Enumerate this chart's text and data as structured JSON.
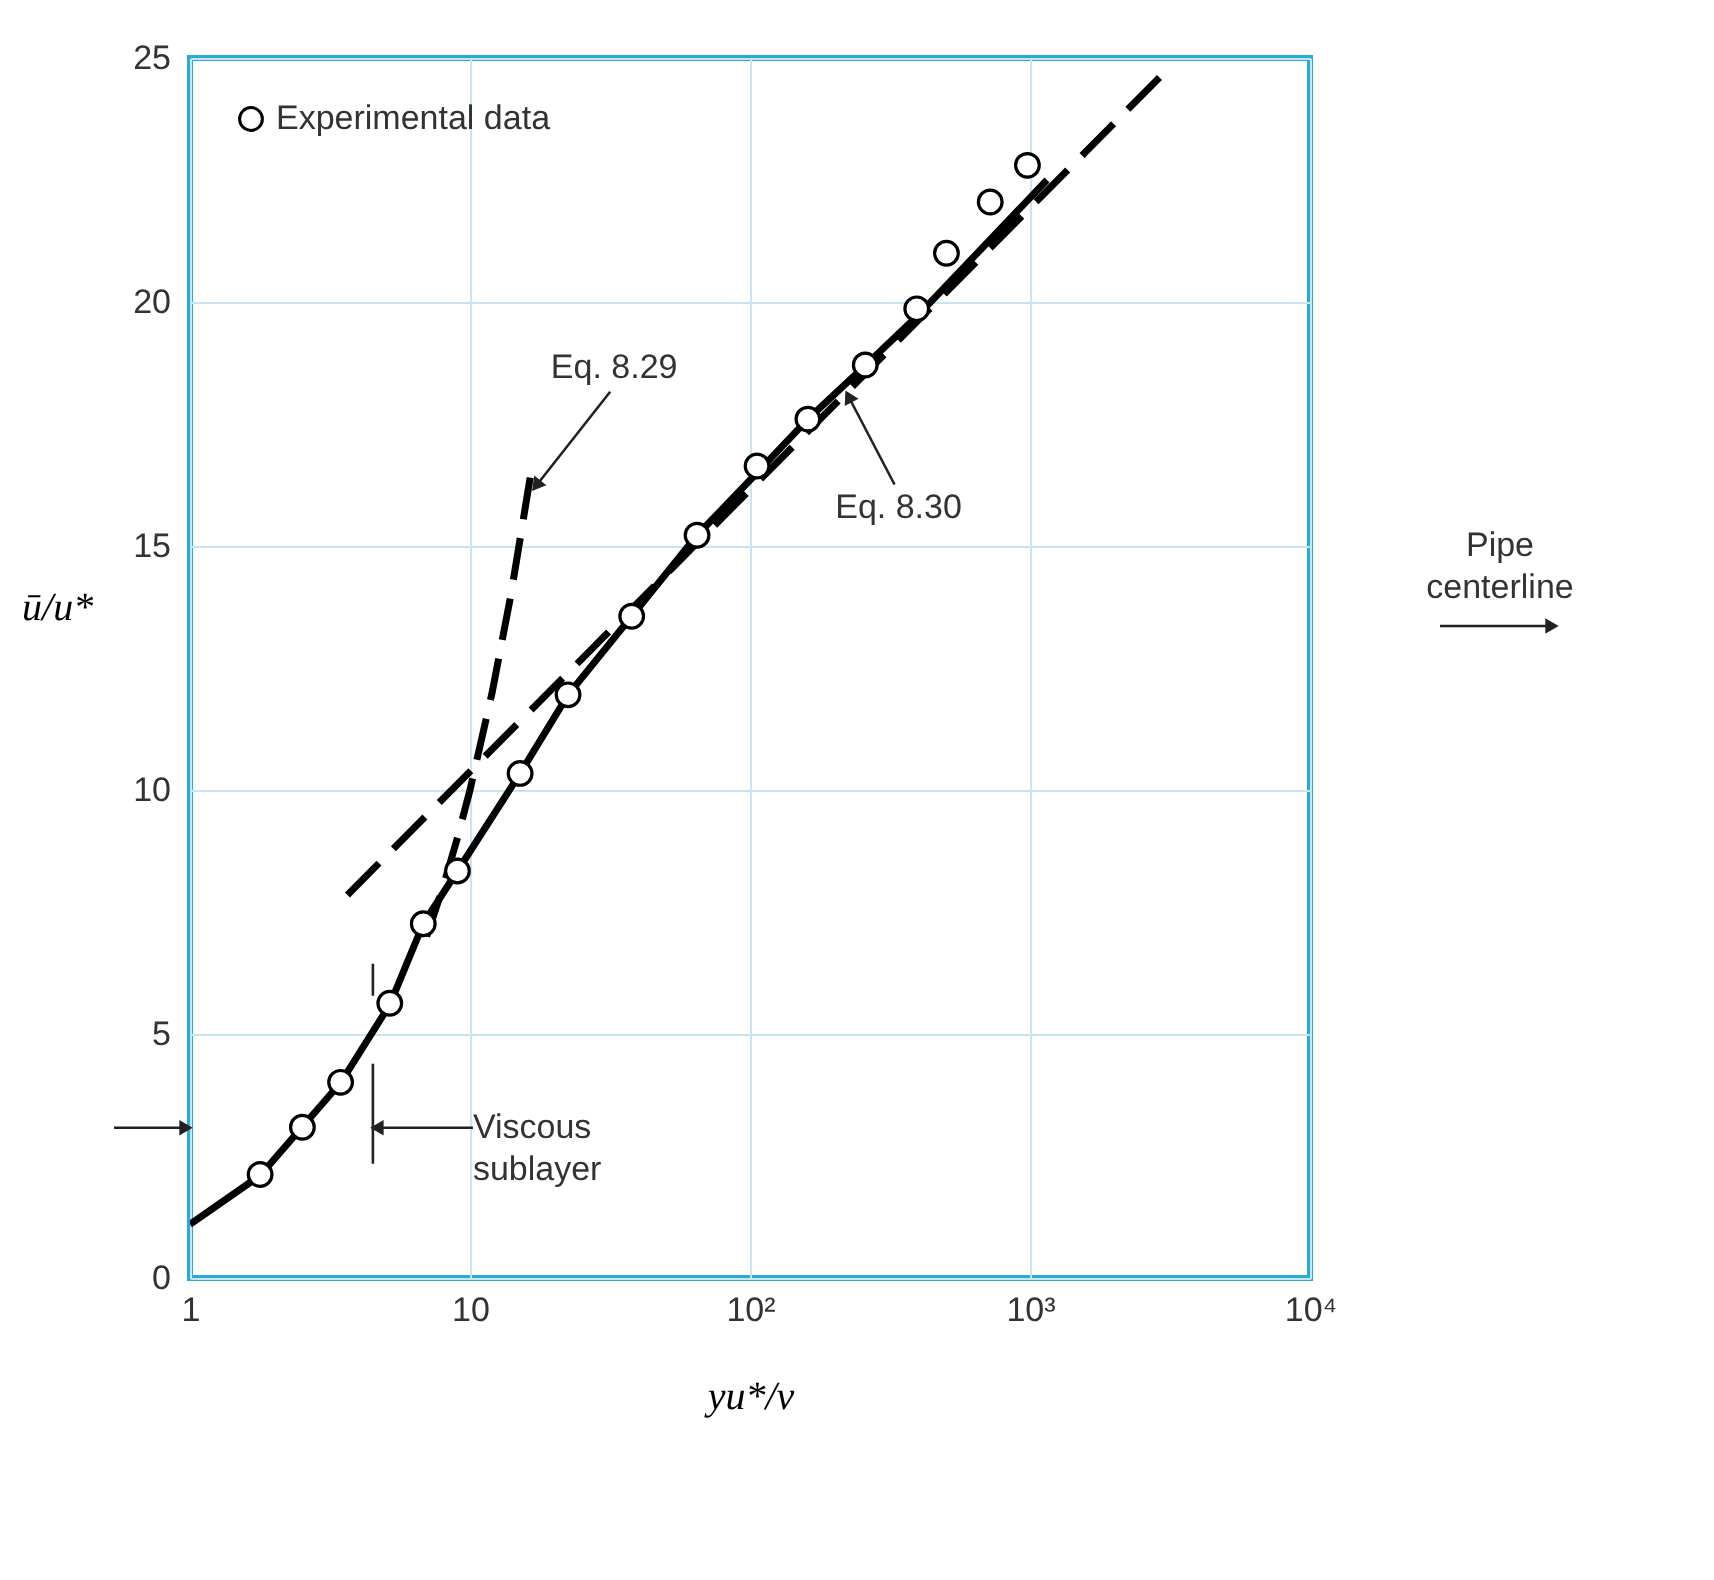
{
  "chart_data": {
    "type": "line",
    "xlabel": "yu*/ν",
    "ylabel": "ū/u*",
    "xlim": [
      1,
      10000
    ],
    "ylim": [
      0,
      25
    ],
    "log": "x",
    "xticks": [
      1,
      10,
      {
        "value": 100,
        "label": "10²"
      },
      {
        "value": 1000,
        "label": "10³"
      },
      {
        "value": 10000,
        "label": "10⁴"
      }
    ],
    "yticks": [
      0,
      5,
      10,
      15,
      20,
      25
    ],
    "grid": true,
    "legend": "top left",
    "series": [
      {
        "type": "line",
        "color": "#000000",
        "line_style": "solid",
        "marker": "none",
        "x": [
          1,
          1.78,
          2.52,
          3.45,
          5.17,
          6.81,
          9.02,
          15.1,
          22.4,
          37.8,
          64.7,
          106,
          161,
          258,
          394,
          1150
        ],
        "values": [
          1.1,
          2.1,
          3.1,
          4.0,
          5.6,
          7.26,
          8.34,
          10.34,
          11.95,
          13.56,
          15.22,
          16.5,
          17.6,
          18.7,
          19.7,
          22.5
        ]
      },
      {
        "type": "line",
        "color": "#000000",
        "line_style": "dashed",
        "marker": "none",
        "x": [
          3.65,
          2900
        ],
        "values": [
          7.85,
          24.6
        ]
      },
      {
        "type": "line",
        "color": "#000000",
        "line_style": "dashed",
        "marker": "none",
        "x": [
          7,
          8,
          9,
          10,
          12,
          14,
          16.4
        ],
        "values": [
          7,
          8,
          9,
          10,
          12,
          14,
          16.4
        ]
      },
      {
        "type": "scatter",
        "name": "Experimental data",
        "color": "#000000",
        "marker": "circle",
        "x": [
          1.78,
          2.52,
          3.45,
          5.17,
          6.81,
          9.02,
          15.1,
          22.4,
          37.8,
          64.7,
          106,
          161,
          258,
          394,
          503,
          721,
          979
        ],
        "values": [
          2.12,
          3.09,
          4.01,
          5.63,
          7.26,
          8.34,
          10.34,
          11.95,
          13.56,
          15.22,
          16.64,
          17.6,
          18.71,
          19.86,
          21.0,
          22.05,
          22.8
        ]
      }
    ],
    "annotations": [
      {
        "text": "Eq. 8.29",
        "x": 16.4,
        "y": 16.4
      },
      {
        "text": "Eq. 8.30",
        "x": 214,
        "y": 17.9
      },
      {
        "text": "Viscous sublayer",
        "x": 4.5,
        "y": 3.08
      },
      "Pipe centerline"
    ]
  }
}
